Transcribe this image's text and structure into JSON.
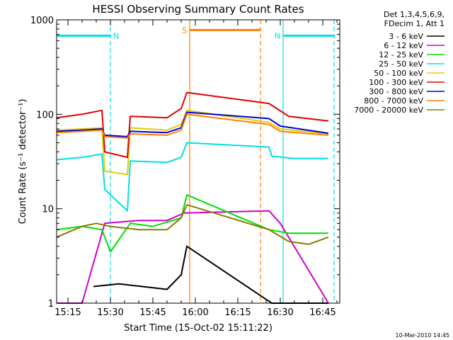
{
  "chart_data": {
    "type": "line",
    "title": "HESSI Observing Summary Count Rates",
    "xlabel": "Start Time (15-Oct-02 15:11:22)",
    "ylabel": "Count Rate (s⁻¹ detector⁻¹)",
    "y_scale": "log",
    "ylim": [
      1,
      1000
    ],
    "xlim": [
      "15:11",
      "16:51"
    ],
    "x_ticks": [
      "15:15",
      "15:30",
      "15:45",
      "16:00",
      "16:15",
      "16:30",
      "16:45"
    ],
    "y_ticks": [
      "1",
      "10",
      "100",
      "1000"
    ],
    "legend_header": [
      "Det 1,3,4,5,6,9,",
      "FDecim 1, Att 1"
    ],
    "legend_position": "right",
    "timestamp": "10-Mar-2010 14:45",
    "series": [
      {
        "name": "3 - 6 keV",
        "color": "#000000",
        "x": [
          "15:24",
          "15:33",
          "15:50",
          "15:55",
          "15:57",
          "16:27",
          "16:47"
        ],
        "values": [
          1.5,
          1.6,
          1.4,
          2.0,
          4.0,
          1.0,
          1.0
        ]
      },
      {
        "name": "6 - 12 keV",
        "color": "#d000d0",
        "x": [
          "15:11",
          "15:20",
          "15:28",
          "15:40",
          "15:50",
          "15:56",
          "16:26",
          "16:30",
          "16:47"
        ],
        "values": [
          1.0,
          1.0,
          7.0,
          7.5,
          7.5,
          9.0,
          9.5,
          7.0,
          1.0
        ]
      },
      {
        "name": "12 - 25 keV",
        "color": "#00e000",
        "x": [
          "15:11",
          "15:20",
          "15:27",
          "15:30",
          "15:37",
          "15:45",
          "15:55",
          "15:57",
          "16:26",
          "16:33",
          "16:47"
        ],
        "values": [
          6.0,
          6.5,
          6.0,
          3.5,
          7.0,
          6.5,
          8.0,
          14.0,
          6.0,
          5.5,
          5.5
        ]
      },
      {
        "name": "25 - 50 keV",
        "color": "#00e0e0",
        "x": [
          "15:11",
          "15:20",
          "15:27",
          "15:28",
          "15:36",
          "15:37",
          "15:50",
          "15:55",
          "15:57",
          "16:26",
          "16:27",
          "16:35",
          "16:47"
        ],
        "values": [
          33,
          35,
          38,
          16,
          9.5,
          32,
          31,
          35,
          50,
          45,
          36,
          34,
          34
        ]
      },
      {
        "name": "50 - 100 keV",
        "color": "#e0d000",
        "x": [
          "15:11",
          "15:20",
          "15:27",
          "15:28",
          "15:36",
          "15:37",
          "15:50",
          "15:55",
          "15:57",
          "16:26",
          "16:30",
          "16:47"
        ],
        "values": [
          68,
          70,
          72,
          25,
          23,
          72,
          68,
          78,
          110,
          82,
          70,
          62
        ]
      },
      {
        "name": "100 - 300 keV",
        "color": "#e00000",
        "x": [
          "15:11",
          "15:20",
          "15:27",
          "15:28",
          "15:36",
          "15:37",
          "15:50",
          "15:55",
          "15:57",
          "16:26",
          "16:33",
          "16:47"
        ],
        "values": [
          92,
          100,
          110,
          40,
          35,
          95,
          92,
          115,
          170,
          130,
          95,
          85
        ]
      },
      {
        "name": "300 - 800 keV",
        "color": "#0000e0",
        "x": [
          "15:11",
          "15:20",
          "15:27",
          "15:28",
          "15:36",
          "15:37",
          "15:50",
          "15:55",
          "15:57",
          "16:26",
          "16:30",
          "16:47"
        ],
        "values": [
          66,
          68,
          70,
          60,
          58,
          66,
          64,
          72,
          105,
          90,
          75,
          63
        ]
      },
      {
        "name": "800 - 7000 keV",
        "color": "#ff7f00",
        "x": [
          "15:11",
          "15:20",
          "15:27",
          "15:28",
          "15:36",
          "15:37",
          "15:50",
          "15:55",
          "15:57",
          "16:26",
          "16:30",
          "16:47"
        ],
        "values": [
          64,
          66,
          68,
          58,
          56,
          62,
          60,
          68,
          100,
          78,
          66,
          60
        ]
      },
      {
        "name": "7000 - 20000 keV",
        "color": "#8b7a00",
        "x": [
          "15:11",
          "15:20",
          "15:25",
          "15:30",
          "15:40",
          "15:50",
          "15:55",
          "15:57",
          "16:26",
          "16:33",
          "16:40",
          "16:47"
        ],
        "values": [
          5.0,
          6.5,
          7.0,
          6.5,
          6.0,
          6.0,
          8.0,
          11.0,
          6.0,
          4.5,
          4.2,
          5.0
        ]
      }
    ],
    "flags": [
      {
        "label": "N",
        "color": "#00e0e0",
        "start": "15:11",
        "end": "15:30",
        "level": 680
      },
      {
        "label": "N",
        "color": "#00e0e0",
        "start": "16:31",
        "end": "16:49",
        "level": 680
      },
      {
        "label": "S",
        "color": "#ff7f00",
        "start": "15:58",
        "end": "16:23",
        "level": 780
      }
    ],
    "markers": [
      {
        "time": "15:30",
        "color": "#00e0e0",
        "style": "dashed"
      },
      {
        "time": "15:58",
        "color": "#ff7f00",
        "style": "solid"
      },
      {
        "time": "16:23",
        "color": "#ff7f00",
        "style": "dashed"
      },
      {
        "time": "16:31",
        "color": "#00e0e0",
        "style": "solid"
      },
      {
        "time": "16:49",
        "color": "#00e0e0",
        "style": "dashed"
      }
    ]
  }
}
